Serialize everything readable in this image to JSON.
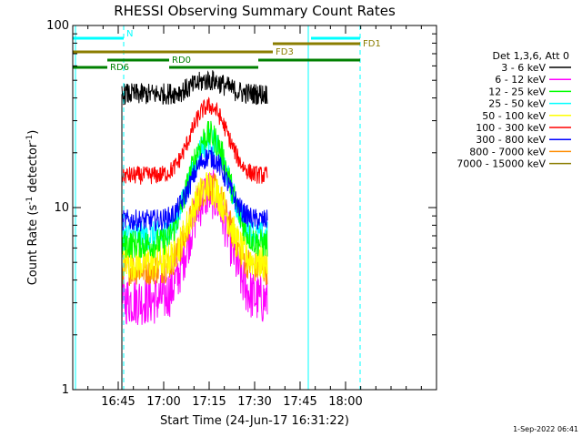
{
  "chart_data": {
    "type": "line",
    "title": "RHESSI Observing Summary Count Rates",
    "xlabel": "Start Time (24-Jun-17 16:31:22)",
    "ylabel_main": "Count Rate (s",
    "ylabel_sup1": "-1",
    "ylabel_mid": " detector",
    "ylabel_sup2": "-1",
    "ylabel_end": ")",
    "yscale": "log",
    "ylim": [
      1,
      100
    ],
    "xlim_minutes": [
      16.5,
      18.5
    ],
    "yticks": [
      {
        "value": 1,
        "label": "1"
      },
      {
        "value": 10,
        "label": "10"
      },
      {
        "value": 100,
        "label": "100"
      }
    ],
    "xticks": [
      {
        "value": 16.75,
        "label": "16:45"
      },
      {
        "value": 17.0,
        "label": "17:00"
      },
      {
        "value": 17.25,
        "label": "17:15"
      },
      {
        "value": 17.5,
        "label": "17:30"
      },
      {
        "value": 17.75,
        "label": "17:45"
      },
      {
        "value": 18.0,
        "label": "18:00"
      }
    ],
    "legend_title": "Det 1,3,6, Att 0",
    "legend_placement": "right",
    "data_window_hours": [
      16.77,
      17.57
    ],
    "series": [
      {
        "name": "3 - 6 keV",
        "color": "#000000",
        "base": 42,
        "peak": 50,
        "noise": 0.06
      },
      {
        "name": "6 - 12 keV",
        "color": "#ff00ff",
        "base": 3.1,
        "peak": 12,
        "noise": 0.14
      },
      {
        "name": "12 - 25 keV",
        "color": "#00ff00",
        "base": 6.3,
        "peak": 25,
        "noise": 0.08
      },
      {
        "name": "25 - 50 keV",
        "color": "#00ffff",
        "base": 7.0,
        "peak": 23,
        "noise": 0.08
      },
      {
        "name": "50 - 100 keV",
        "color": "#ffff00",
        "base": 5.0,
        "peak": 13,
        "noise": 0.1
      },
      {
        "name": "100 - 300 keV",
        "color": "#ff0000",
        "base": 15,
        "peak": 36,
        "noise": 0.05
      },
      {
        "name": "300 - 800 keV",
        "color": "#0000ff",
        "base": 8.5,
        "peak": 19,
        "noise": 0.06
      },
      {
        "name": "800 - 7000 keV",
        "color": "#ff8c00",
        "base": 4.6,
        "peak": 13,
        "noise": 0.09
      },
      {
        "name": "7000 - 15000 keV",
        "color": "#8b7d00",
        "base": 1.0,
        "peak": 1.0,
        "noise": 0
      }
    ],
    "vertical_lines": [
      {
        "hour": 16.515,
        "color": "#00ffff",
        "style": "solid"
      },
      {
        "hour": 16.78,
        "color": "#00ffff",
        "style": "dashed"
      },
      {
        "hour": 17.795,
        "color": "#00ffff",
        "style": "solid"
      },
      {
        "hour": 18.08,
        "color": "#00ffff",
        "style": "dashed"
      }
    ],
    "flag_bars": [
      {
        "label": "N",
        "start": 16.5,
        "end": 16.78,
        "level": 0,
        "color": "#00ffff"
      },
      {
        "label": "",
        "start": 17.81,
        "end": 18.08,
        "level": 0,
        "color": "#00ffff"
      },
      {
        "label": "FD1",
        "start": 17.6,
        "end": 18.08,
        "level": 1,
        "color": "#8b7d00"
      },
      {
        "label": "FD3",
        "start": 16.5,
        "end": 17.6,
        "level": 2,
        "color": "#8b7d00"
      },
      {
        "label": "RD0",
        "start": 16.69,
        "end": 17.03,
        "level": 3,
        "color": "#008000"
      },
      {
        "label": "",
        "start": 17.52,
        "end": 18.08,
        "level": 3,
        "color": "#008000"
      },
      {
        "label": "RD6",
        "start": 16.5,
        "end": 16.69,
        "level": 4,
        "color": "#008000"
      },
      {
        "label": "",
        "start": 17.03,
        "end": 17.52,
        "level": 4,
        "color": "#008000"
      }
    ],
    "footer": "1-Sep-2022 06:41"
  }
}
